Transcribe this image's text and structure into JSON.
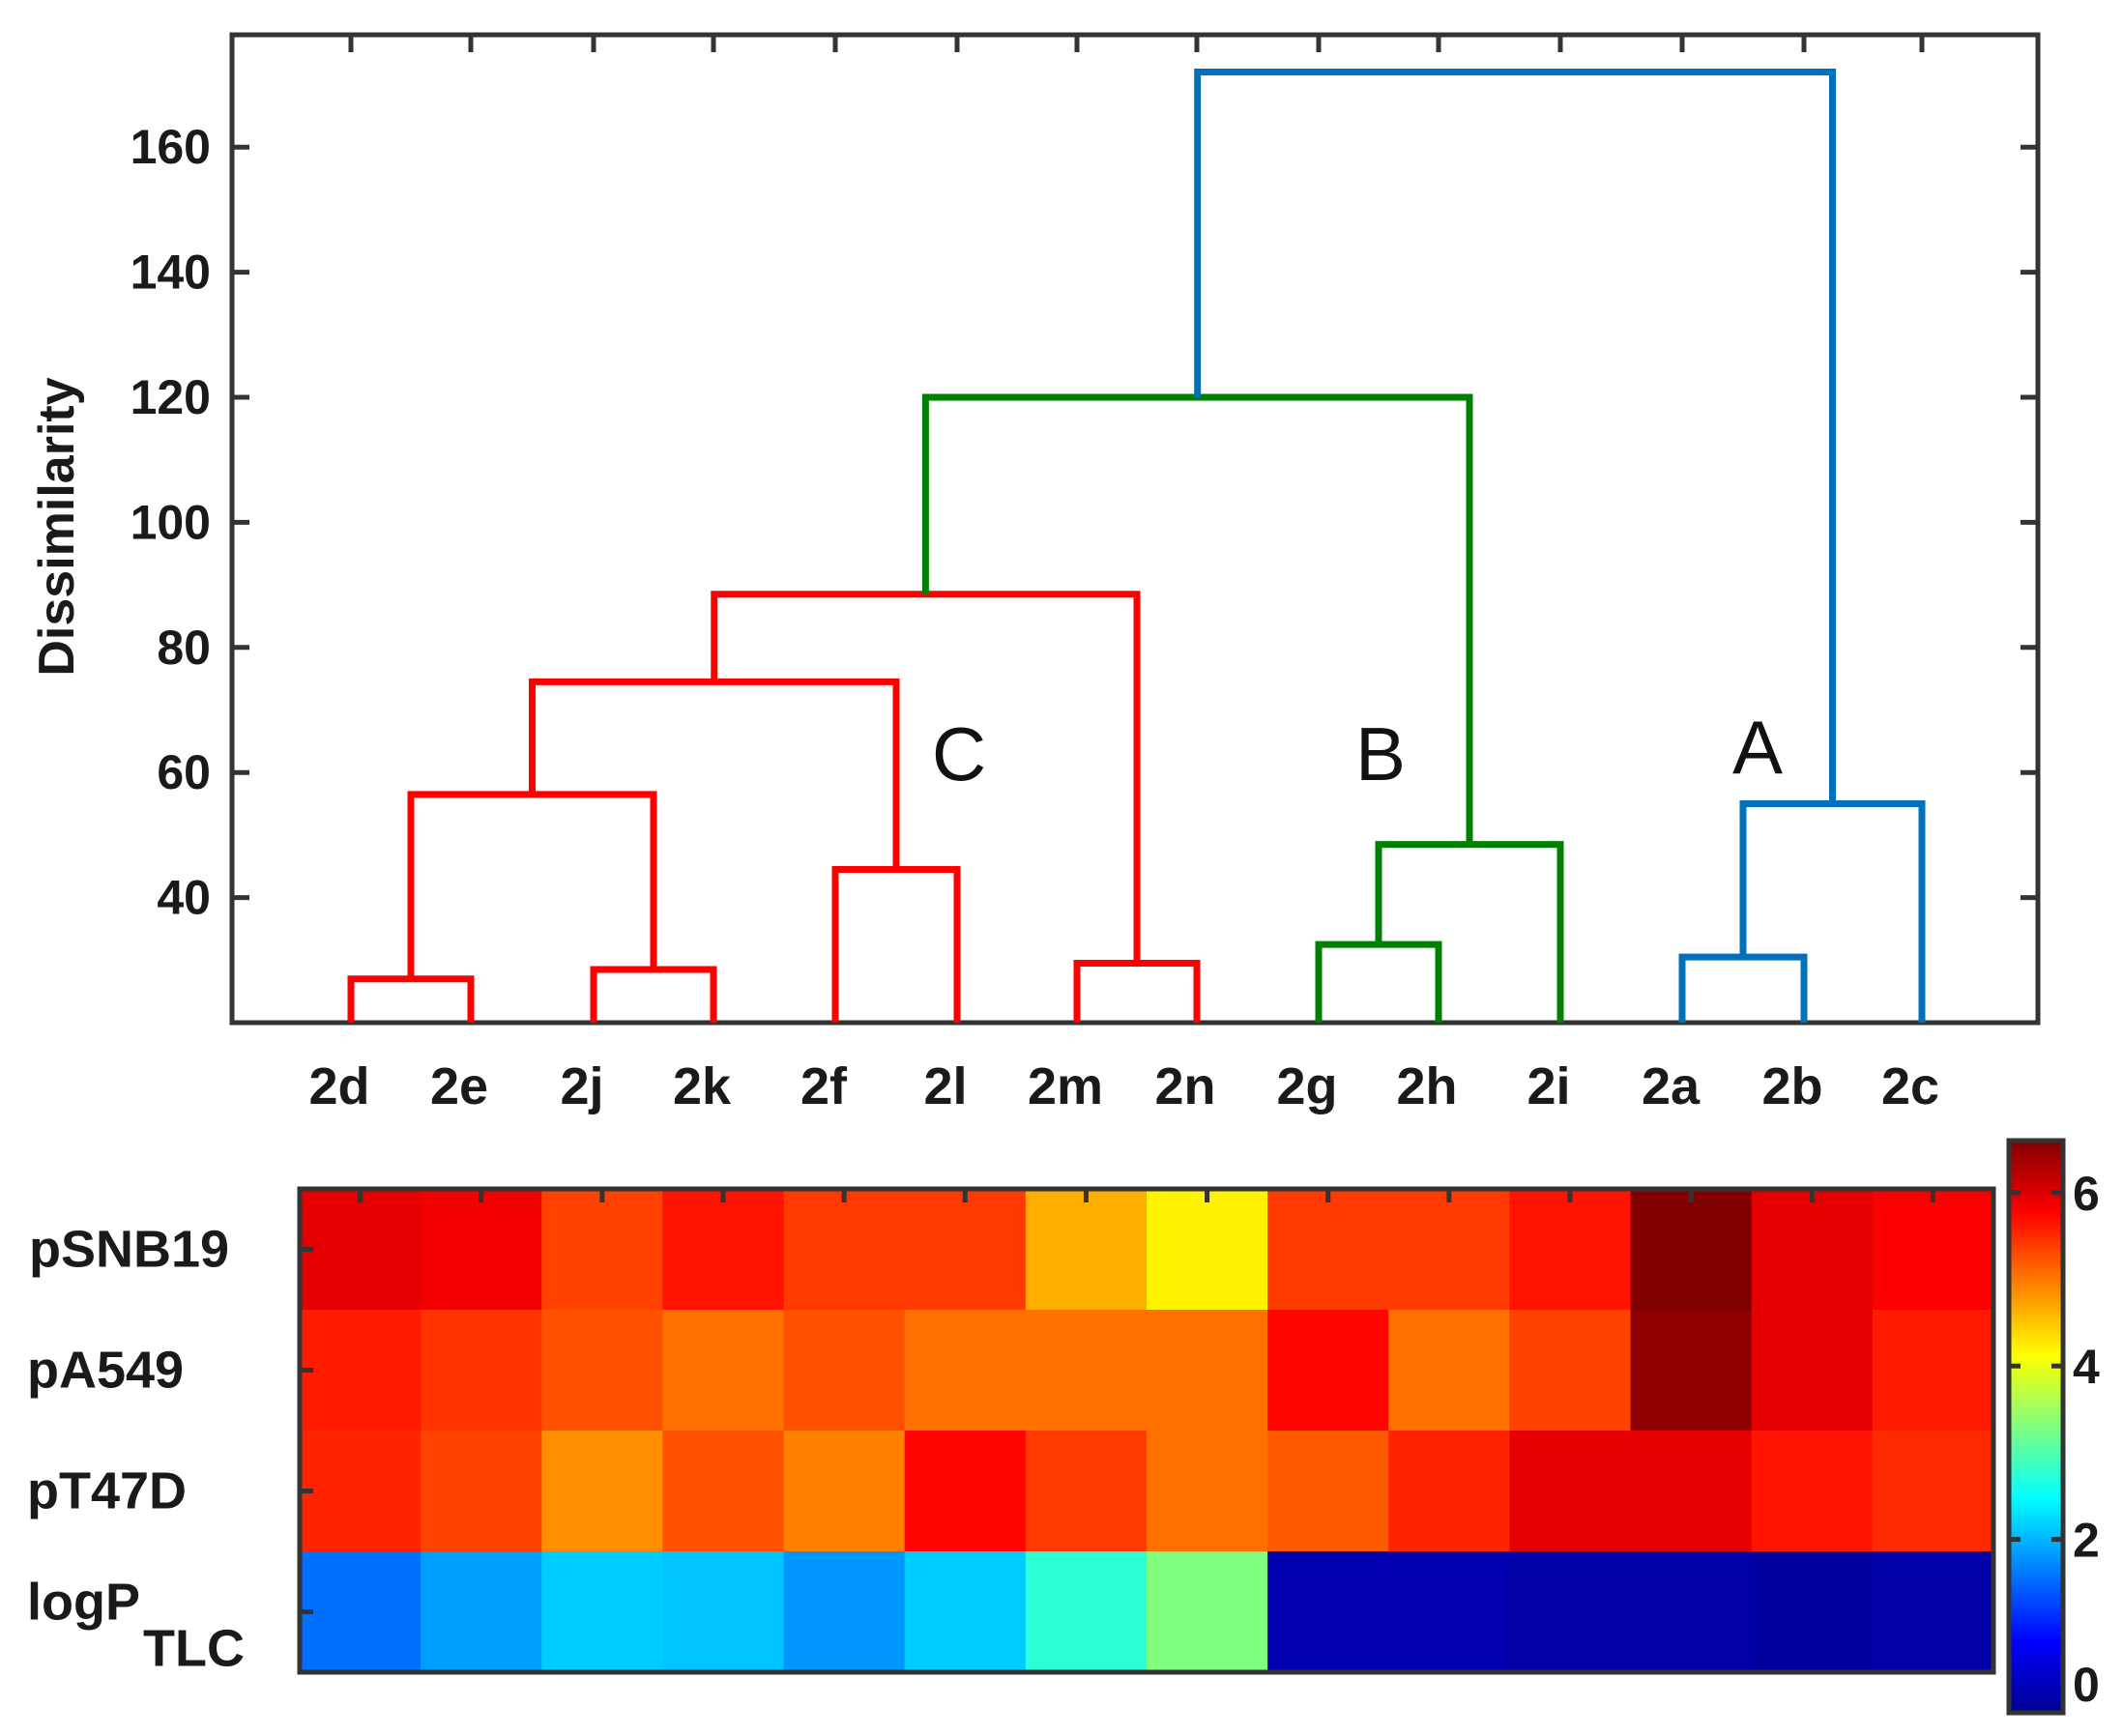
{
  "chart_data": [
    {
      "type": "dendrogram",
      "ylabel": "Dissimilarity",
      "ylim": [
        20,
        177
      ],
      "yticks": [
        "40",
        "60",
        "80",
        "100",
        "120",
        "140",
        "160"
      ],
      "leaves": [
        "2d",
        "2e",
        "2j",
        "2k",
        "2f",
        "2l",
        "2m",
        "2n",
        "2g",
        "2h",
        "2i",
        "2a",
        "2b",
        "2c"
      ],
      "merges": [
        {
          "left": "2d",
          "right": "2e",
          "height": 27,
          "id": "n1",
          "color": "#ff0000"
        },
        {
          "left": "2j",
          "right": "2k",
          "height": 28.5,
          "id": "n2",
          "color": "#ff0000"
        },
        {
          "left": "n1",
          "right": "n2",
          "height": 56.5,
          "id": "n3",
          "color": "#ff0000"
        },
        {
          "left": "2f",
          "right": "2l",
          "height": 44.5,
          "id": "n4",
          "color": "#ff0000"
        },
        {
          "left": "n3",
          "right": "n4",
          "height": 74.5,
          "id": "n5",
          "color": "#ff0000"
        },
        {
          "left": "2m",
          "right": "2n",
          "height": 29.5,
          "id": "n6",
          "color": "#ff0000"
        },
        {
          "left": "n5",
          "right": "n6",
          "height": 88.5,
          "id": "n7",
          "color": "#ff0000"
        },
        {
          "left": "2g",
          "right": "2h",
          "height": 32.5,
          "id": "n8",
          "color": "#008000"
        },
        {
          "left": "n8",
          "right": "2i",
          "height": 48.5,
          "id": "n9",
          "color": "#008000"
        },
        {
          "left": "n7",
          "right": "n9",
          "height": 120,
          "id": "n10",
          "color": "#008000"
        },
        {
          "left": "2a",
          "right": "2b",
          "height": 30.5,
          "id": "n11",
          "color": "#0072bd"
        },
        {
          "left": "n11",
          "right": "2c",
          "height": 55,
          "id": "n12",
          "color": "#0072bd"
        },
        {
          "left": "n10",
          "right": "n12",
          "height": 172,
          "id": "n13",
          "color": "#0072bd"
        }
      ],
      "clusters": [
        {
          "label": "C",
          "color": "#ff0000"
        },
        {
          "label": "B",
          "color": "#008000"
        },
        {
          "label": "A",
          "color": "#0072bd"
        }
      ]
    },
    {
      "type": "heatmap",
      "rows": [
        "pSNB19",
        "pA549",
        "pT47D",
        "logP"
      ],
      "row_subscripts": [
        "",
        "",
        "",
        "TLC"
      ],
      "columns": [
        "2d",
        "2e",
        "2j",
        "2k",
        "2f",
        "2l",
        "2m",
        "2n",
        "2g",
        "2h",
        "2i",
        "2a",
        "2b",
        "2c"
      ],
      "values": [
        [
          5.95,
          5.85,
          5.35,
          5.65,
          5.4,
          5.4,
          4.65,
          4.2,
          5.4,
          5.4,
          5.65,
          6.6,
          5.95,
          5.8
        ],
        [
          5.6,
          5.45,
          5.25,
          5.05,
          5.25,
          5.05,
          5.05,
          5.05,
          5.75,
          5.05,
          5.35,
          6.5,
          5.95,
          5.6
        ],
        [
          5.55,
          5.35,
          4.85,
          5.25,
          4.95,
          5.75,
          5.4,
          5.05,
          5.2,
          5.55,
          5.95,
          5.95,
          5.65,
          5.5
        ],
        [
          1.55,
          1.85,
          2.15,
          2.1,
          1.8,
          2.15,
          2.75,
          3.3,
          0.3,
          0.3,
          0.25,
          0.25,
          0.2,
          0.25
        ]
      ],
      "colorbar": {
        "min": 0,
        "max": 6.6,
        "ticks": [
          "0",
          "2",
          "4",
          "6"
        ],
        "colormap": "jet"
      }
    }
  ]
}
